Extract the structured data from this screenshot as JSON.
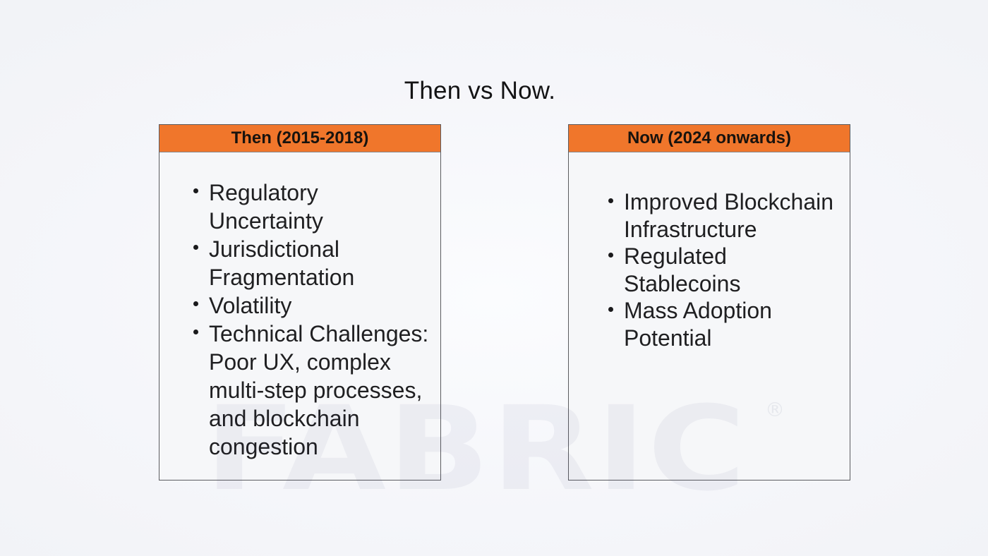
{
  "slide": {
    "title": "Then vs Now.",
    "accent_color": "#F0762B",
    "background_color": "#F4F5F9",
    "panel_background_color": "#F6F7F9",
    "panel_border_color": "#5B5C60",
    "text_color": "#1F1F21"
  },
  "comparison": {
    "then": {
      "header": "Then (2015-2018)",
      "items": [
        "Regulatory Uncertainty",
        "Jurisdictional Fragmentation",
        "Volatility",
        "Technical Challenges: Poor UX, complex multi-step processes, and blockchain congestion"
      ]
    },
    "now": {
      "header": "Now (2024 onwards)",
      "items": [
        "Improved Blockchain Infrastructure",
        "Regulated Stablecoins",
        "Mass Adoption Potential"
      ]
    }
  },
  "watermark": {
    "text": "FABRIC",
    "registered_mark": "®"
  }
}
